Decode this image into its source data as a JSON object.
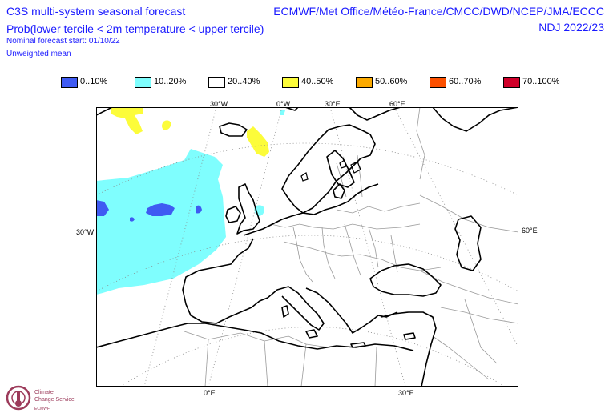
{
  "header": {
    "title": "C3S multi-system seasonal forecast",
    "subtitle": "Prob(lower tercile < 2m temperature < upper tercile)",
    "nominal_start": "Nominal forecast start: 01/10/22",
    "weighting": "Unweighted mean",
    "systems": "ECMWF/Met Office/Météo-France/CMCC/DWD/NCEP/JMA/ECCC",
    "period": "NDJ 2022/23"
  },
  "legend": [
    {
      "label": "0..10%",
      "color": "#3f5bf2"
    },
    {
      "label": "10..20%",
      "color": "#7ffefe"
    },
    {
      "label": "20..40%",
      "color": "#ffffff"
    },
    {
      "label": "40..50%",
      "color": "#fcfc3a"
    },
    {
      "label": "50..60%",
      "color": "#fcaa00"
    },
    {
      "label": "60..70%",
      "color": "#fc5000"
    },
    {
      "label": "70..100%",
      "color": "#d0002a"
    }
  ],
  "map": {
    "lon_top": [
      "30°W",
      "0°W",
      "30°E",
      "60°E"
    ],
    "lon_bottom": [
      "0°E",
      "30°E"
    ],
    "lat_left": [
      "30°W"
    ],
    "lat_right": [
      "60°E"
    ]
  },
  "logo": {
    "line1": "Climate",
    "line2": "Change Service",
    "line3": "ECMWF"
  }
}
